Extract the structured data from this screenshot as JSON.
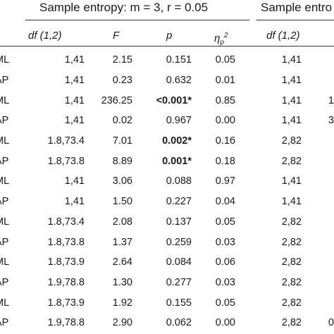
{
  "header": {
    "group1": "Sample entropy: m = 3, r = 0.05",
    "group2": "Sample entro",
    "columns": {
      "df": "df (1,2)",
      "f": "F",
      "p": "p",
      "eta_main": "η",
      "eta_sub": "p",
      "eta_sup": "2",
      "df2": "df (1,2)"
    }
  },
  "rows": [
    {
      "label": "ML",
      "df": "1,41",
      "f": "2.15",
      "p": "0.151",
      "p_bold": false,
      "eta": "0.05",
      "df2": "1,41",
      "f2": ""
    },
    {
      "label": "AP",
      "df": "1,41",
      "f": "0.23",
      "p": "0.632",
      "p_bold": false,
      "eta": "0.01",
      "df2": "1,41",
      "f2": ""
    },
    {
      "label": "ML",
      "df": "1,41",
      "f": "236.25",
      "p": "<0.001*",
      "p_bold": true,
      "eta": "0.85",
      "df2": "1,41",
      "f2": "1"
    },
    {
      "label": "AP",
      "df": "1,41",
      "f": "0.02",
      "p": "0.967",
      "p_bold": false,
      "eta": "0.00",
      "df2": "1,41",
      "f2": "3"
    },
    {
      "label": "ML",
      "df": "1.8,73.4",
      "f": "7.01",
      "p": "0.002*",
      "p_bold": true,
      "eta": "0.16",
      "df2": "2,82",
      "f2": ""
    },
    {
      "label": "AP",
      "df": "1.8,73.8",
      "f": "8.89",
      "p": "0.001*",
      "p_bold": true,
      "eta": "0.18",
      "df2": "2,82",
      "f2": ""
    },
    {
      "label": "ML",
      "df": "1,41",
      "f": "3.06",
      "p": "0.088",
      "p_bold": false,
      "eta": "0.97",
      "df2": "1,41",
      "f2": ""
    },
    {
      "label": "AP",
      "df": "1,41",
      "f": "1.50",
      "p": "0.227",
      "p_bold": false,
      "eta": "0.04",
      "df2": "1,41",
      "f2": ""
    },
    {
      "label": "ML",
      "df": "1.8,73.4",
      "f": "2.08",
      "p": "0.137",
      "p_bold": false,
      "eta": "0.05",
      "df2": "2,82",
      "f2": ""
    },
    {
      "label": "AP",
      "df": "1.8,73.8",
      "f": "1.37",
      "p": "0.259",
      "p_bold": false,
      "eta": "0.03",
      "df2": "2,82",
      "f2": ""
    },
    {
      "label": "ML",
      "df": "1.8,73.9",
      "f": "2.64",
      "p": "0.084",
      "p_bold": false,
      "eta": "0.06",
      "df2": "2,82",
      "f2": ""
    },
    {
      "label": "AP",
      "df": "1.9,78.8",
      "f": "1.30",
      "p": "0.277",
      "p_bold": false,
      "eta": "0.03",
      "df2": "2,82",
      "f2": ""
    },
    {
      "label": "ML",
      "df": "1.8,73.9",
      "f": "1.92",
      "p": "0.155",
      "p_bold": false,
      "eta": "0.05",
      "df2": "2,82",
      "f2": ""
    },
    {
      "label": "AP",
      "df": "1.9,78.8",
      "f": "2.90",
      "p": "0.062",
      "p_bold": false,
      "eta": "0.00",
      "df2": "2,82",
      "f2": "0"
    }
  ]
}
